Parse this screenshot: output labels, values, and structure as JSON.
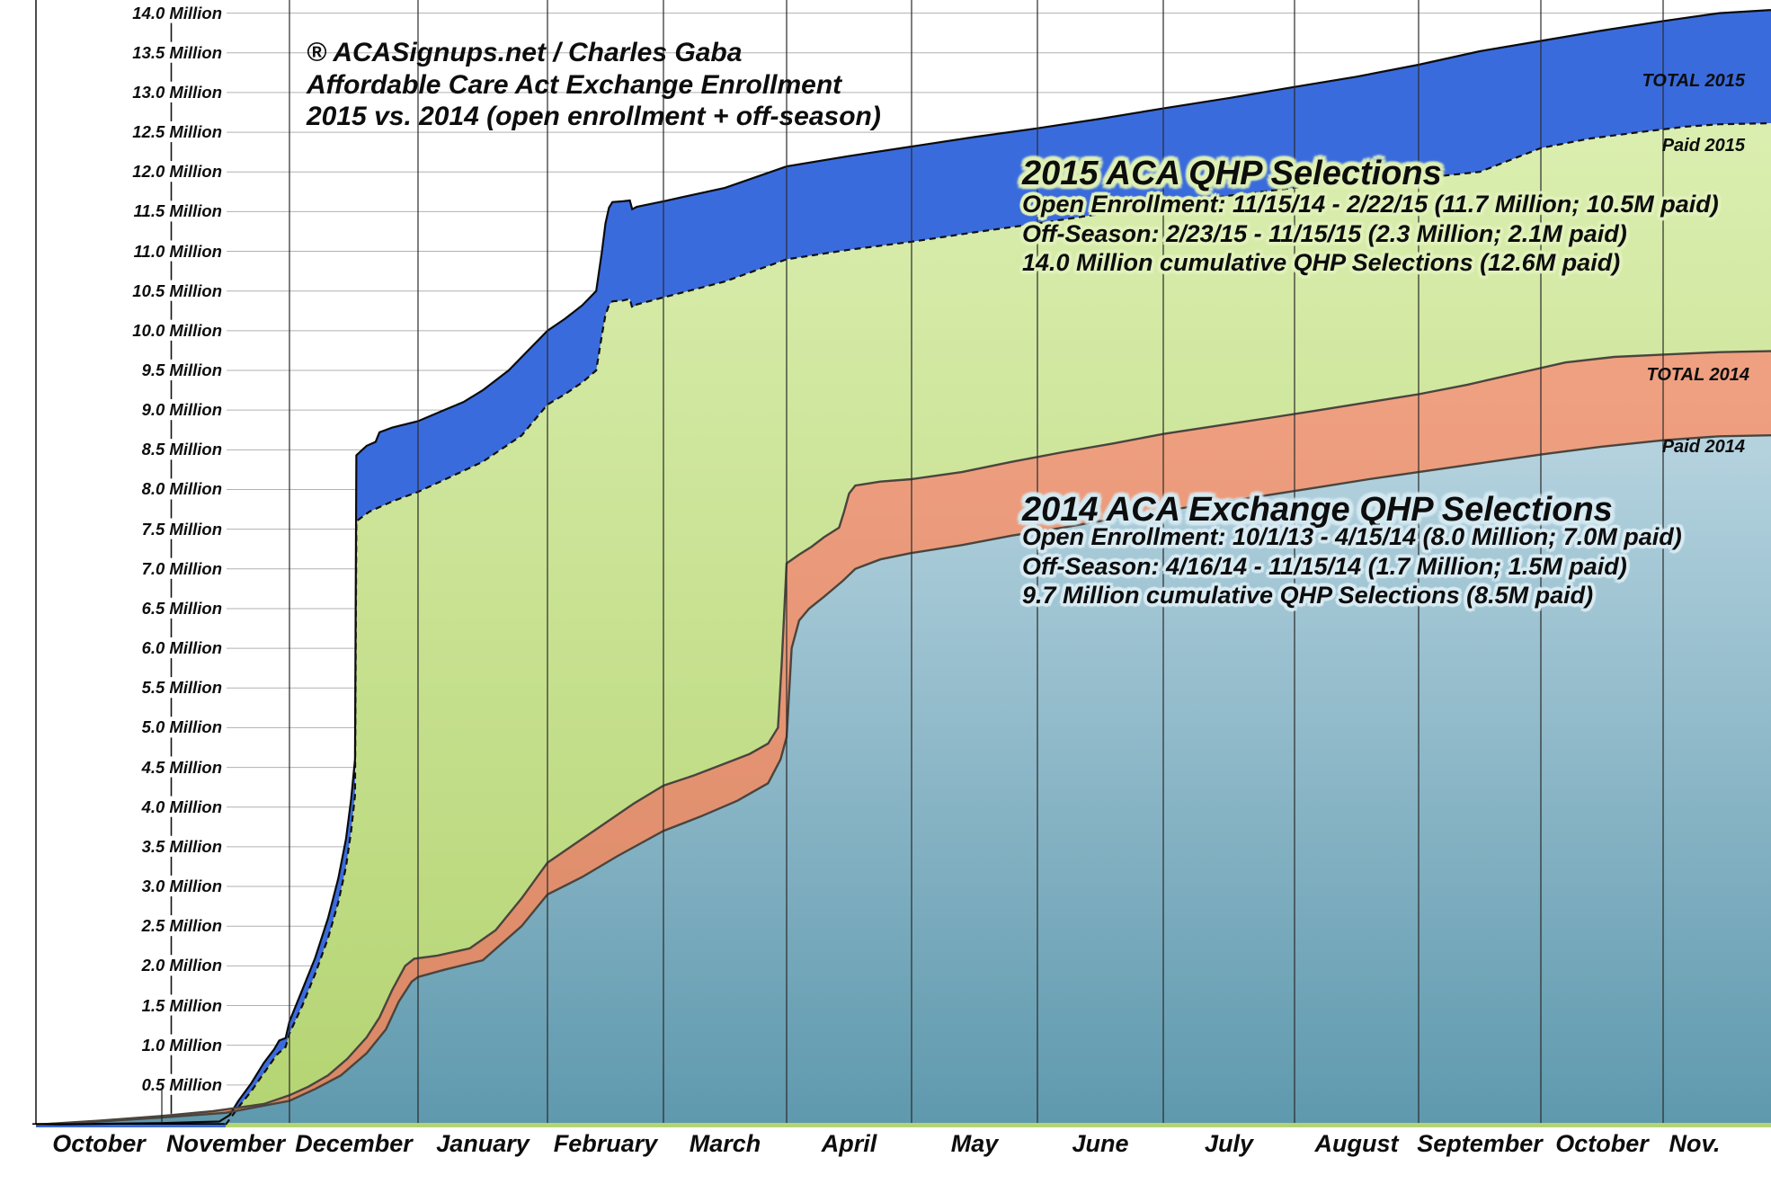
{
  "title_block": {
    "line1": "® ACASignups.net / Charles Gaba",
    "line2": "Affordable Care Act Exchange Enrollment",
    "line3": "2015 vs. 2014 (open enrollment + off-season)"
  },
  "annotation_2015": {
    "title": "2015 ACA QHP Selections",
    "line1": "Open Enrollment: 11/15/14 - 2/22/15 (11.7 Million; 10.5M paid)",
    "line2": "Off-Season: 2/23/15 - 11/15/15 (2.3 Million; 2.1M paid)",
    "line3": "14.0 Million cumulative QHP Selections (12.6M paid)"
  },
  "annotation_2014": {
    "title": "2014 ACA Exchange QHP Selections",
    "line1": "Open Enrollment: 10/1/13 - 4/15/14 (8.0 Million; 7.0M paid)",
    "line2": "Off-Season: 4/16/14 - 11/15/14 (1.7 Million; 1.5M paid)",
    "line3": "9.7 Million cumulative QHP Selections (8.5M paid)"
  },
  "series_labels": {
    "total_2015": "TOTAL 2015",
    "paid_2015": "Paid 2015",
    "total_2014": "TOTAL 2014",
    "paid_2014": "Paid 2014"
  },
  "chart_data": {
    "type": "area",
    "title": "Affordable Care Act Exchange Enrollment, 2015 vs. 2014 (open enrollment + off-season)",
    "x_axis": {
      "unit": "months since Oct 1 (2013 for the 2014 series, 2014 for the 2015 series); labels centered mid-month",
      "month_labels": [
        "October",
        "November",
        "December",
        "January",
        "February",
        "March",
        "April",
        "May",
        "June",
        "July",
        "August",
        "September",
        "October",
        "Nov."
      ]
    },
    "y_axis": {
      "min": 0,
      "max": 14.25,
      "tick_step": 0.5,
      "unit": "Million",
      "tick_labels": [
        "0.5 Million",
        "1.0 Million",
        "1.5 Million",
        "2.0 Million",
        "2.5 Million",
        "3.0 Million",
        "3.5 Million",
        "4.0 Million",
        "4.5 Million",
        "5.0 Million",
        "5.5 Million",
        "6.0 Million",
        "6.5 Million",
        "7.0 Million",
        "7.5 Million",
        "8.0 Million",
        "8.5 Million",
        "9.0 Million",
        "9.5 Million",
        "10.0 Million",
        "10.5 Million",
        "11.0 Million",
        "11.5 Million",
        "12.0 Million",
        "12.5 Million",
        "13.0 Million",
        "13.5 Million",
        "14.0 Million"
      ]
    },
    "colors": {
      "total_2015": {
        "fill": "#3a6bdd",
        "stroke": "#0b0b0b"
      },
      "paid_2015": {
        "fill_top": "#dcefb2",
        "fill_bottom": "#b4d472",
        "stroke": "#101010",
        "dashed": true
      },
      "total_2014": {
        "fill_top": "#efa081",
        "fill_bottom": "#d98663",
        "stroke": "#4a453e"
      },
      "paid_2014": {
        "fill_top": "#b7d4e0",
        "fill_bottom": "#5f99ae",
        "stroke": "#4a453e"
      },
      "h_grid": "#b0b0b0",
      "v_grid": "#2a2a2a",
      "axis": "#000000"
    },
    "series": [
      {
        "id": "total_2015",
        "name": "TOTAL 2015",
        "points": [
          [
            0,
            0
          ],
          [
            1.0,
            0.02
          ],
          [
            1.45,
            0.04
          ],
          [
            1.53,
            0.12
          ],
          [
            1.6,
            0.3
          ],
          [
            1.7,
            0.52
          ],
          [
            1.8,
            0.78
          ],
          [
            1.88,
            0.95
          ],
          [
            1.92,
            1.06
          ],
          [
            1.97,
            1.09
          ],
          [
            2.0,
            1.3
          ],
          [
            2.1,
            1.7
          ],
          [
            2.2,
            2.1
          ],
          [
            2.3,
            2.6
          ],
          [
            2.38,
            3.1
          ],
          [
            2.44,
            3.6
          ],
          [
            2.48,
            4.1
          ],
          [
            2.51,
            4.6
          ],
          [
            2.52,
            8.43
          ],
          [
            2.6,
            8.55
          ],
          [
            2.67,
            8.6
          ],
          [
            2.7,
            8.72
          ],
          [
            2.8,
            8.78
          ],
          [
            3.0,
            8.86
          ],
          [
            3.2,
            9.0
          ],
          [
            3.35,
            9.1
          ],
          [
            3.5,
            9.25
          ],
          [
            3.7,
            9.5
          ],
          [
            3.85,
            9.75
          ],
          [
            4.0,
            10.0
          ],
          [
            4.15,
            10.15
          ],
          [
            4.3,
            10.32
          ],
          [
            4.42,
            10.5
          ],
          [
            4.47,
            11.0
          ],
          [
            4.5,
            11.35
          ],
          [
            4.53,
            11.55
          ],
          [
            4.56,
            11.62
          ],
          [
            4.65,
            11.63
          ],
          [
            4.71,
            11.64
          ],
          [
            4.73,
            11.53
          ],
          [
            4.77,
            11.56
          ],
          [
            5.0,
            11.63
          ],
          [
            5.5,
            11.8
          ],
          [
            6.0,
            12.07
          ],
          [
            6.5,
            12.2
          ],
          [
            7.0,
            12.32
          ],
          [
            7.5,
            12.44
          ],
          [
            8.0,
            12.55
          ],
          [
            8.5,
            12.67
          ],
          [
            9.0,
            12.8
          ],
          [
            9.5,
            12.93
          ],
          [
            10.0,
            13.07
          ],
          [
            10.5,
            13.2
          ],
          [
            11.0,
            13.35
          ],
          [
            11.5,
            13.52
          ],
          [
            12.0,
            13.65
          ],
          [
            12.5,
            13.78
          ],
          [
            13.0,
            13.9
          ],
          [
            13.5,
            14.0
          ],
          [
            14.9,
            14.12
          ]
        ]
      },
      {
        "id": "paid_2015",
        "name": "Paid 2015",
        "points": [
          [
            1.5,
            0.0
          ],
          [
            1.6,
            0.22
          ],
          [
            1.7,
            0.42
          ],
          [
            1.8,
            0.65
          ],
          [
            1.9,
            0.88
          ],
          [
            1.97,
            0.98
          ],
          [
            2.0,
            1.15
          ],
          [
            2.1,
            1.5
          ],
          [
            2.2,
            1.9
          ],
          [
            2.3,
            2.35
          ],
          [
            2.38,
            2.8
          ],
          [
            2.44,
            3.25
          ],
          [
            2.48,
            3.7
          ],
          [
            2.51,
            4.15
          ],
          [
            2.52,
            7.6
          ],
          [
            2.62,
            7.72
          ],
          [
            2.8,
            7.85
          ],
          [
            3.0,
            7.97
          ],
          [
            3.2,
            8.12
          ],
          [
            3.5,
            8.35
          ],
          [
            3.8,
            8.68
          ],
          [
            4.0,
            9.07
          ],
          [
            4.15,
            9.2
          ],
          [
            4.3,
            9.35
          ],
          [
            4.42,
            9.5
          ],
          [
            4.47,
            9.95
          ],
          [
            4.5,
            10.2
          ],
          [
            4.53,
            10.32
          ],
          [
            4.56,
            10.37
          ],
          [
            4.65,
            10.38
          ],
          [
            4.71,
            10.4
          ],
          [
            4.73,
            10.29
          ],
          [
            4.77,
            10.33
          ],
          [
            5.0,
            10.42
          ],
          [
            5.5,
            10.62
          ],
          [
            6.0,
            10.9
          ],
          [
            6.5,
            11.02
          ],
          [
            7.0,
            11.12
          ],
          [
            7.5,
            11.24
          ],
          [
            8.0,
            11.35
          ],
          [
            8.5,
            11.47
          ],
          [
            9.0,
            11.58
          ],
          [
            9.5,
            11.7
          ],
          [
            10.0,
            11.8
          ],
          [
            10.5,
            11.87
          ],
          [
            11.0,
            11.92
          ],
          [
            11.5,
            12.0
          ],
          [
            12.0,
            12.3
          ],
          [
            12.4,
            12.42
          ],
          [
            12.8,
            12.5
          ],
          [
            13.2,
            12.57
          ],
          [
            13.5,
            12.6
          ],
          [
            14.9,
            12.64
          ]
        ]
      },
      {
        "id": "total_2014",
        "name": "TOTAL 2014",
        "points": [
          [
            0,
            0
          ],
          [
            0.5,
            0.05
          ],
          [
            1.0,
            0.11
          ],
          [
            1.4,
            0.17
          ],
          [
            1.8,
            0.26
          ],
          [
            2.0,
            0.37
          ],
          [
            2.15,
            0.48
          ],
          [
            2.3,
            0.62
          ],
          [
            2.45,
            0.83
          ],
          [
            2.6,
            1.1
          ],
          [
            2.7,
            1.35
          ],
          [
            2.8,
            1.7
          ],
          [
            2.9,
            2.0
          ],
          [
            2.97,
            2.09
          ],
          [
            3.15,
            2.13
          ],
          [
            3.4,
            2.22
          ],
          [
            3.6,
            2.45
          ],
          [
            3.8,
            2.85
          ],
          [
            4.0,
            3.3
          ],
          [
            4.2,
            3.5
          ],
          [
            4.5,
            3.8
          ],
          [
            4.75,
            4.05
          ],
          [
            5.0,
            4.27
          ],
          [
            5.25,
            4.4
          ],
          [
            5.5,
            4.55
          ],
          [
            5.7,
            4.67
          ],
          [
            5.85,
            4.8
          ],
          [
            5.93,
            5.0
          ],
          [
            5.96,
            5.8
          ],
          [
            6.0,
            7.07
          ],
          [
            6.1,
            7.18
          ],
          [
            6.2,
            7.28
          ],
          [
            6.3,
            7.4
          ],
          [
            6.42,
            7.52
          ],
          [
            6.46,
            7.72
          ],
          [
            6.5,
            7.95
          ],
          [
            6.55,
            8.05
          ],
          [
            6.75,
            8.1
          ],
          [
            7.0,
            8.13
          ],
          [
            7.4,
            8.22
          ],
          [
            7.8,
            8.35
          ],
          [
            8.2,
            8.47
          ],
          [
            8.6,
            8.58
          ],
          [
            9.0,
            8.7
          ],
          [
            9.4,
            8.8
          ],
          [
            9.8,
            8.9
          ],
          [
            10.2,
            9.0
          ],
          [
            10.6,
            9.1
          ],
          [
            11.0,
            9.2
          ],
          [
            11.4,
            9.32
          ],
          [
            11.8,
            9.46
          ],
          [
            12.2,
            9.6
          ],
          [
            12.6,
            9.67
          ],
          [
            13.0,
            9.7
          ],
          [
            13.5,
            9.73
          ],
          [
            14.9,
            9.77
          ]
        ]
      },
      {
        "id": "paid_2014",
        "name": "Paid 2014",
        "points": [
          [
            0,
            0
          ],
          [
            0.5,
            0.04
          ],
          [
            1.0,
            0.09
          ],
          [
            1.5,
            0.15
          ],
          [
            2.0,
            0.3
          ],
          [
            2.2,
            0.45
          ],
          [
            2.4,
            0.62
          ],
          [
            2.6,
            0.9
          ],
          [
            2.75,
            1.2
          ],
          [
            2.85,
            1.55
          ],
          [
            2.95,
            1.8
          ],
          [
            3.0,
            1.86
          ],
          [
            3.2,
            1.95
          ],
          [
            3.5,
            2.07
          ],
          [
            3.8,
            2.5
          ],
          [
            4.0,
            2.9
          ],
          [
            4.3,
            3.12
          ],
          [
            4.6,
            3.38
          ],
          [
            5.0,
            3.7
          ],
          [
            5.3,
            3.88
          ],
          [
            5.6,
            4.08
          ],
          [
            5.85,
            4.3
          ],
          [
            5.95,
            4.6
          ],
          [
            6.0,
            4.88
          ],
          [
            6.04,
            6.0
          ],
          [
            6.1,
            6.35
          ],
          [
            6.18,
            6.5
          ],
          [
            6.3,
            6.65
          ],
          [
            6.45,
            6.85
          ],
          [
            6.55,
            7.0
          ],
          [
            6.75,
            7.12
          ],
          [
            7.0,
            7.2
          ],
          [
            7.4,
            7.3
          ],
          [
            7.8,
            7.42
          ],
          [
            8.2,
            7.52
          ],
          [
            8.6,
            7.63
          ],
          [
            9.0,
            7.73
          ],
          [
            9.4,
            7.83
          ],
          [
            9.8,
            7.93
          ],
          [
            10.2,
            8.03
          ],
          [
            10.6,
            8.13
          ],
          [
            11.0,
            8.22
          ],
          [
            11.5,
            8.33
          ],
          [
            12.0,
            8.44
          ],
          [
            12.5,
            8.54
          ],
          [
            13.0,
            8.62
          ],
          [
            13.5,
            8.67
          ],
          [
            14.9,
            8.71
          ]
        ]
      }
    ]
  }
}
